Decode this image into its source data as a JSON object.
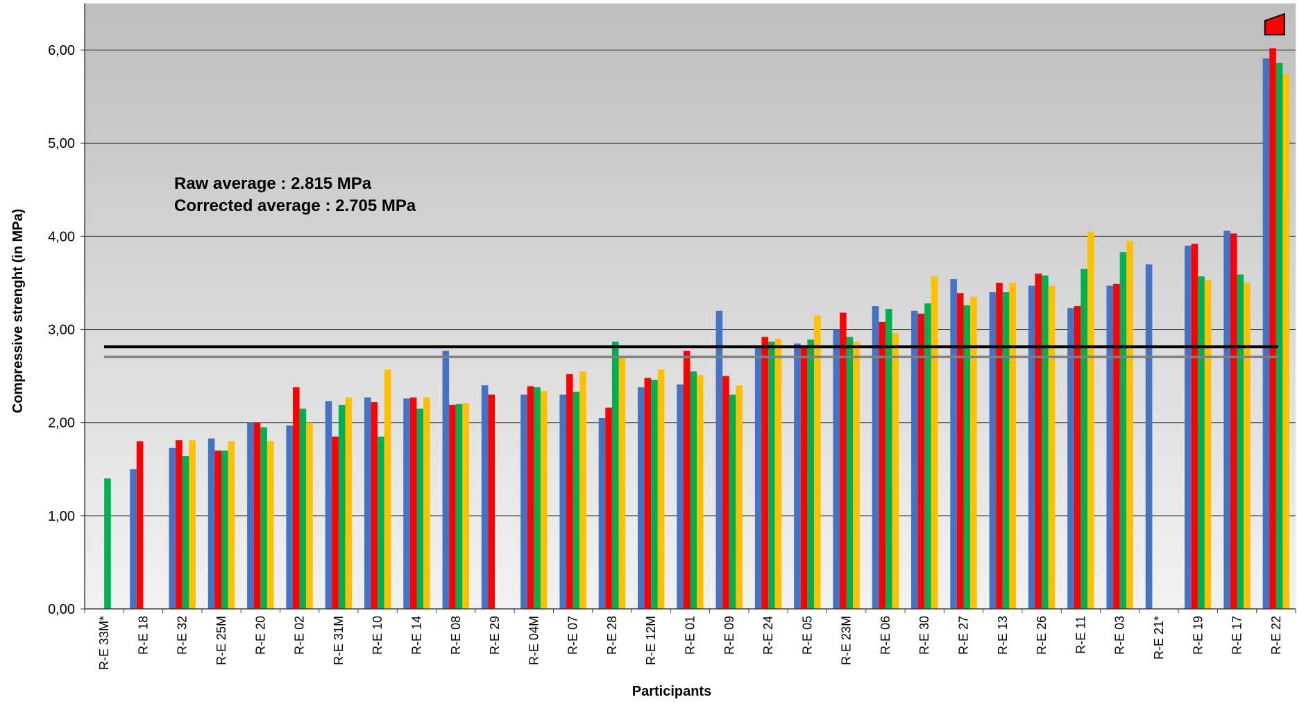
{
  "chart_data": {
    "type": "bar",
    "title": "",
    "xlabel": "Participants",
    "ylabel": "Compressive strenght (in MPa)",
    "ylim": [
      0,
      6.5
    ],
    "yticks": [
      0,
      1,
      2,
      3,
      4,
      5,
      6
    ],
    "ytick_labels": [
      "0,00",
      "1,00",
      "2,00",
      "3,00",
      "4,00",
      "5,00",
      "6,00"
    ],
    "grid": true,
    "categories": [
      "R-E 33M*",
      "R-E 18",
      "R-E 32",
      "R-E 25M",
      "R-E 20",
      "R-E 02",
      "R-E 31M",
      "R-E 10",
      "R-E 14",
      "R-E 08",
      "R-E 29",
      "R-E 04M",
      "R-E 07",
      "R-E 28",
      "R-E 12M",
      "R-E 01",
      "R-E 09",
      "R-E 24",
      "R-E 05",
      "R-E 23M",
      "R-E 06",
      "R-E 30",
      "R-E 27",
      "R-E 13",
      "R-E 26",
      "R-E 11",
      "R-E 03",
      "R-E 21*",
      "R-E 19",
      "R-E 17",
      "R-E 22"
    ],
    "series": [
      {
        "color": "#4472C4",
        "values": [
          null,
          1.5,
          1.73,
          1.83,
          2.0,
          1.97,
          2.23,
          2.27,
          2.26,
          2.77,
          2.4,
          2.3,
          2.3,
          2.05,
          2.38,
          2.41,
          3.2,
          2.8,
          2.85,
          3.0,
          3.25,
          3.2,
          3.54,
          3.4,
          3.47,
          3.23,
          3.47,
          3.7,
          3.9,
          4.06,
          5.91
        ]
      },
      {
        "color": "#FF0000",
        "values": [
          null,
          1.8,
          1.81,
          1.7,
          2.0,
          2.38,
          1.85,
          2.22,
          2.27,
          2.19,
          2.3,
          2.39,
          2.52,
          2.16,
          2.48,
          2.77,
          2.5,
          2.92,
          2.83,
          3.18,
          3.08,
          3.17,
          3.39,
          3.5,
          3.6,
          3.25,
          3.49,
          null,
          3.92,
          4.03,
          6.02
        ]
      },
      {
        "color": "#00B050",
        "values": [
          1.4,
          null,
          1.64,
          1.7,
          1.95,
          2.15,
          2.19,
          1.85,
          2.15,
          2.2,
          null,
          2.38,
          2.33,
          2.87,
          2.46,
          2.55,
          2.3,
          2.87,
          2.89,
          2.92,
          3.22,
          3.28,
          3.26,
          3.4,
          3.58,
          3.65,
          3.83,
          null,
          3.57,
          3.59,
          5.86
        ]
      },
      {
        "color": "#FFC000",
        "values": [
          null,
          null,
          1.81,
          1.8,
          1.8,
          2.0,
          2.27,
          2.57,
          2.27,
          2.21,
          null,
          2.34,
          2.55,
          2.7,
          2.57,
          2.51,
          2.4,
          2.9,
          3.15,
          2.87,
          2.96,
          3.57,
          3.35,
          3.5,
          3.47,
          4.05,
          3.95,
          null,
          3.53,
          3.5,
          5.74
        ]
      }
    ],
    "reference_lines": [
      {
        "value": 2.815,
        "color": "#000000"
      },
      {
        "value": 2.705,
        "color": "#808080"
      }
    ],
    "annotations": [
      "Raw average : 2.815 MPa",
      "Corrected average : 2.705 MPa"
    ],
    "overflow_marker_color": "#FF0000"
  }
}
